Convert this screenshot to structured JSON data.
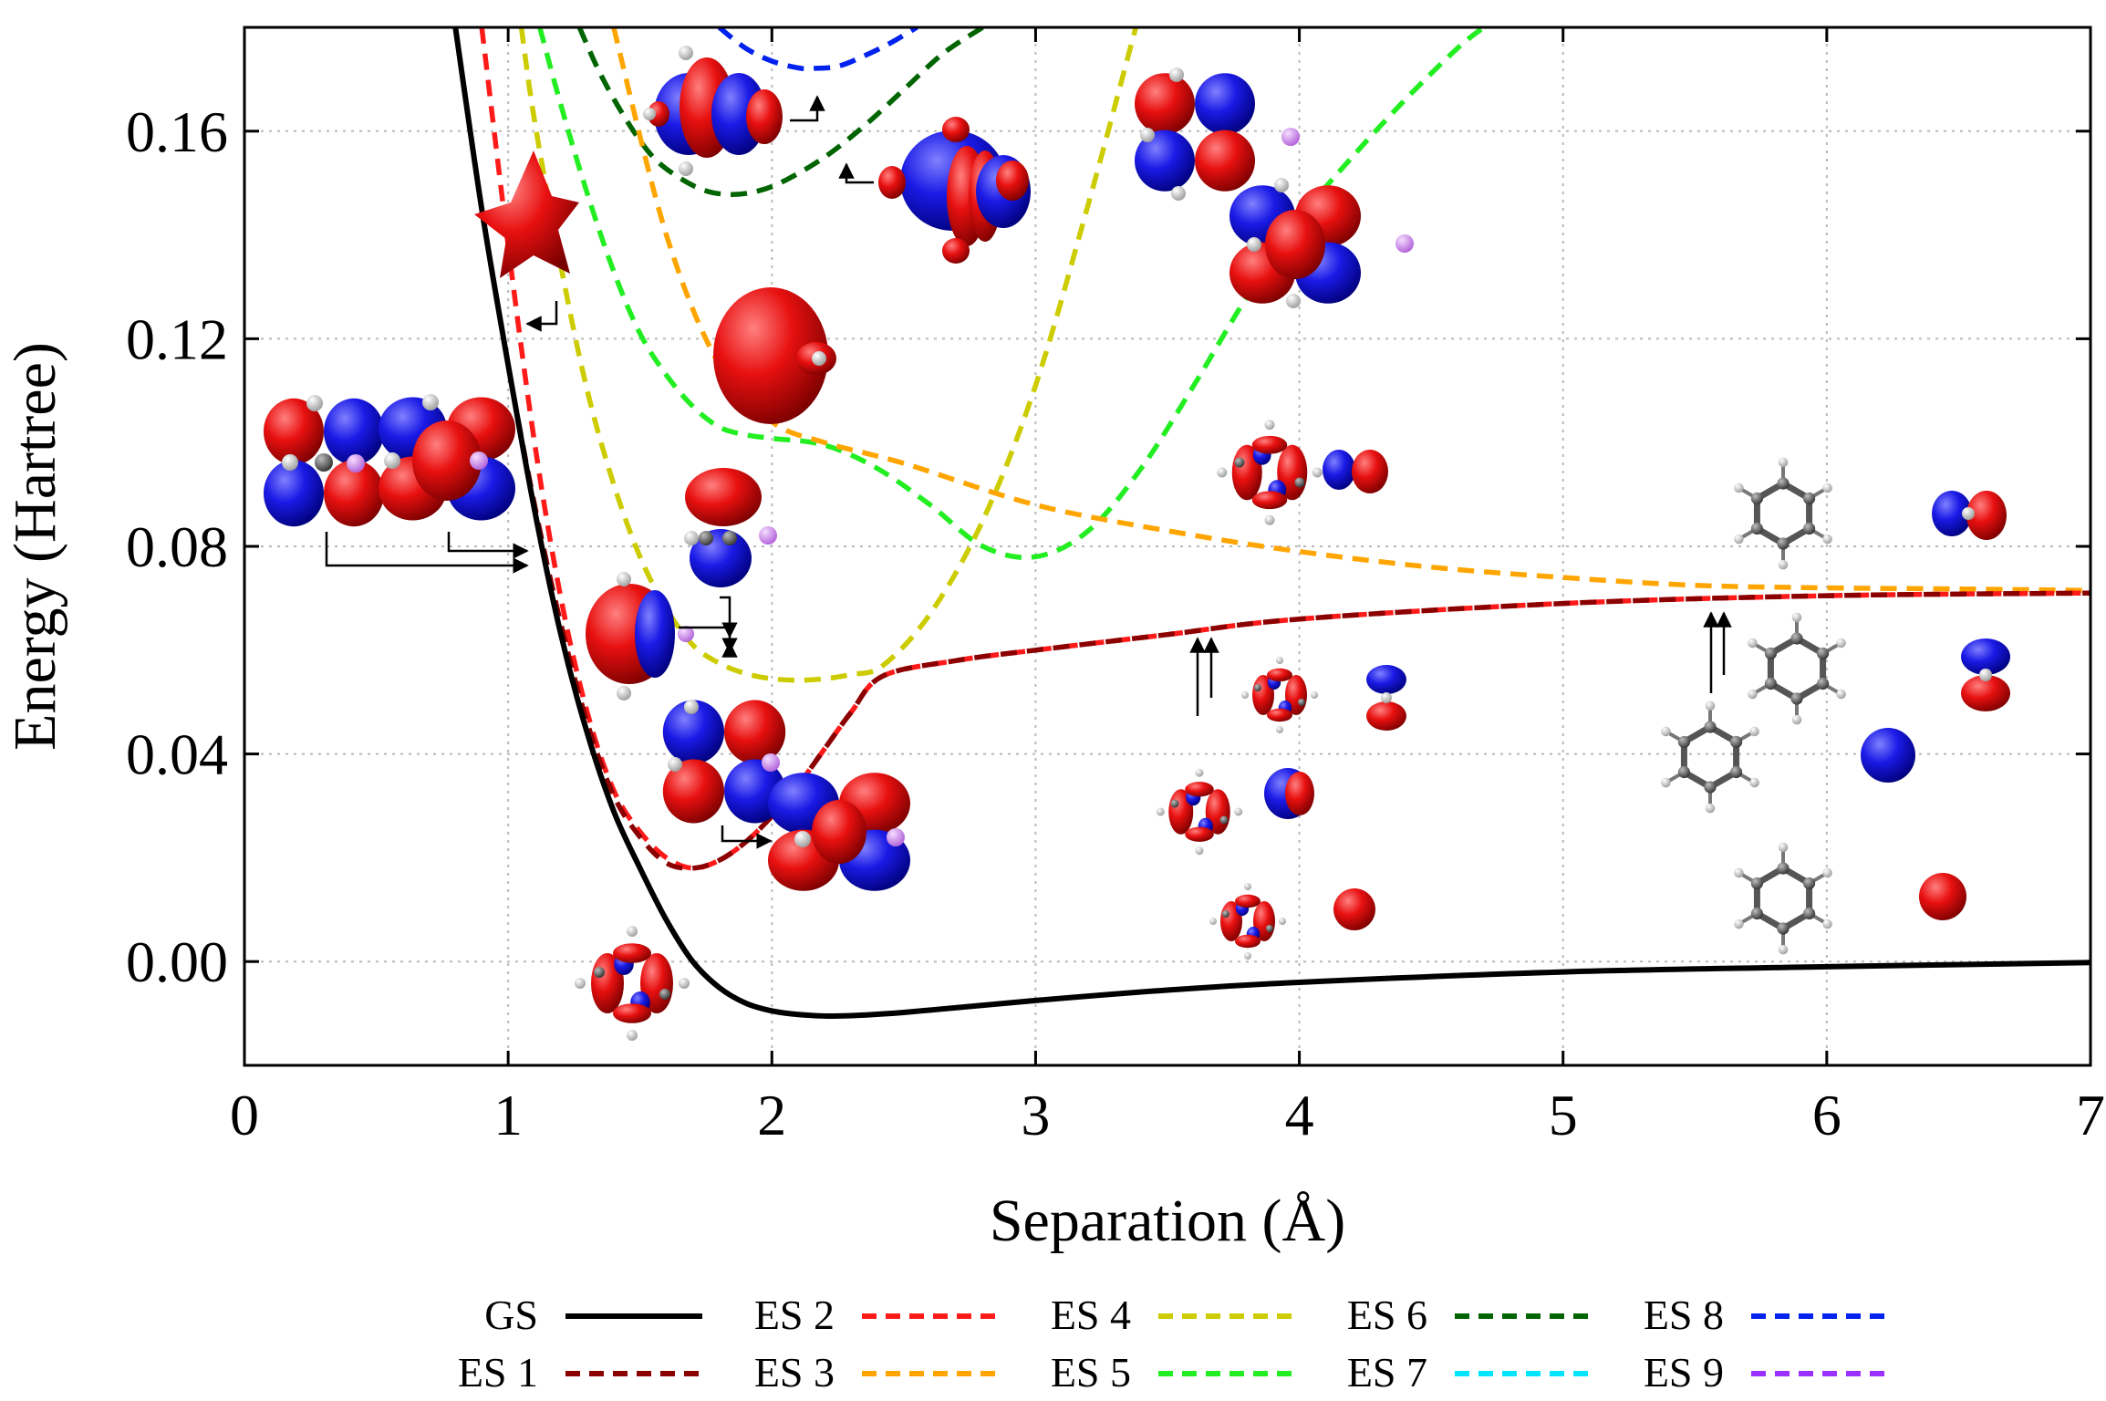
{
  "chart_data": {
    "type": "line",
    "xlabel": "Separation (Å)",
    "ylabel": "Energy (Hartree)",
    "xlim": [
      0,
      7
    ],
    "ylim": [
      -0.02,
      0.18
    ],
    "xticks": [
      0,
      1,
      2,
      3,
      4,
      5,
      6,
      7
    ],
    "xtick_labels": [
      "0",
      "1",
      "2",
      "3",
      "4",
      "5",
      "6",
      "7"
    ],
    "yticks": [
      0.0,
      0.04,
      0.08,
      0.12,
      0.16
    ],
    "ytick_labels": [
      "0.00",
      "0.04",
      "0.08",
      "0.12",
      "0.16"
    ],
    "grid": true,
    "legend_position": "bottom",
    "series": [
      {
        "name": "GS",
        "color": "#000000",
        "dash": "solid",
        "x": [
          0.8,
          0.9,
          1.0,
          1.1,
          1.2,
          1.3,
          1.4,
          1.5,
          1.6,
          1.7,
          1.8,
          1.9,
          2.0,
          2.1,
          2.25,
          2.5,
          3.0,
          3.5,
          4.0,
          5.0,
          6.0,
          7.0
        ],
        "y": [
          0.18,
          0.145,
          0.115,
          0.087,
          0.063,
          0.044,
          0.029,
          0.018,
          0.008,
          0.0,
          -0.005,
          -0.008,
          -0.0095,
          -0.0102,
          -0.0105,
          -0.0098,
          -0.0075,
          -0.0055,
          -0.004,
          -0.002,
          -0.001,
          -0.0002
        ]
      },
      {
        "name": "ES 1",
        "color": "#8b0000",
        "dash": "dashed",
        "x": [
          0.8,
          0.9,
          1.0,
          1.1,
          1.2,
          1.3,
          1.4,
          1.5,
          1.6,
          1.7,
          1.8,
          1.9,
          2.0,
          2.1,
          2.2,
          2.3,
          2.42,
          2.7,
          3.0,
          3.5,
          4.0,
          5.0,
          6.0,
          7.0
        ],
        "y": [
          0.18,
          0.145,
          0.115,
          0.088,
          0.065,
          0.046,
          0.032,
          0.024,
          0.019,
          0.018,
          0.0195,
          0.023,
          0.028,
          0.034,
          0.041,
          0.048,
          0.055,
          0.058,
          0.06,
          0.063,
          0.066,
          0.069,
          0.0705,
          0.071
        ]
      },
      {
        "name": "ES 2",
        "color": "#ff1a1a",
        "dash": "dashed",
        "x": [
          0.9,
          1.0,
          1.1,
          1.2,
          1.3,
          1.4,
          1.5,
          1.6,
          1.7,
          1.8,
          1.9,
          2.0,
          2.1,
          2.2,
          2.3,
          2.42,
          2.7,
          3.0,
          3.5,
          4.0,
          5.0,
          6.0,
          7.0
        ],
        "y": [
          0.18,
          0.138,
          0.1,
          0.07,
          0.048,
          0.033,
          0.025,
          0.02,
          0.018,
          0.0195,
          0.023,
          0.028,
          0.034,
          0.041,
          0.048,
          0.055,
          0.058,
          0.06,
          0.063,
          0.066,
          0.069,
          0.0705,
          0.071
        ]
      },
      {
        "name": "ES 3",
        "color": "#ffa500",
        "dash": "dashed",
        "x": [
          1.4,
          1.6,
          1.8,
          2.0,
          2.2,
          2.5,
          3.0,
          3.5,
          4.0,
          4.5,
          5.0,
          5.5,
          6.0,
          6.5,
          7.0
        ],
        "y": [
          0.18,
          0.14,
          0.115,
          0.104,
          0.1,
          0.096,
          0.088,
          0.083,
          0.079,
          0.076,
          0.074,
          0.0725,
          0.072,
          0.0718,
          0.0715
        ]
      },
      {
        "name": "ES 4",
        "color": "#cccc00",
        "dash": "dashed",
        "x": [
          1.05,
          1.1,
          1.2,
          1.3,
          1.4,
          1.5,
          1.6,
          1.7,
          1.8,
          1.9,
          2.0,
          2.1,
          2.2,
          2.3,
          2.42,
          2.6,
          2.8,
          3.0,
          3.2,
          3.38
        ],
        "y": [
          0.18,
          0.162,
          0.134,
          0.11,
          0.092,
          0.078,
          0.068,
          0.061,
          0.0575,
          0.0555,
          0.0545,
          0.0542,
          0.0545,
          0.0553,
          0.057,
          0.067,
          0.085,
          0.111,
          0.146,
          0.18
        ]
      },
      {
        "name": "ES 5",
        "color": "#22ee22",
        "dash": "dashed",
        "x": [
          1.12,
          1.2,
          1.3,
          1.4,
          1.5,
          1.6,
          1.7,
          1.8,
          1.9,
          2.0,
          2.2,
          2.4,
          2.6,
          2.8,
          3.0,
          3.2,
          3.4,
          3.6,
          3.8,
          4.0,
          4.2,
          4.4,
          4.6,
          4.7
        ],
        "y": [
          0.18,
          0.165,
          0.148,
          0.133,
          0.121,
          0.113,
          0.107,
          0.103,
          0.1015,
          0.1008,
          0.0995,
          0.095,
          0.088,
          0.08,
          0.078,
          0.083,
          0.095,
          0.111,
          0.128,
          0.143,
          0.155,
          0.166,
          0.176,
          0.18
        ]
      },
      {
        "name": "ES 6",
        "color": "#006400",
        "dash": "dashed",
        "x": [
          1.27,
          1.35,
          1.45,
          1.55,
          1.65,
          1.75,
          1.85,
          1.95,
          2.05,
          2.2,
          2.35,
          2.5,
          2.65,
          2.8
        ],
        "y": [
          0.18,
          0.171,
          0.162,
          0.155,
          0.151,
          0.1485,
          0.1478,
          0.1485,
          0.1505,
          0.155,
          0.161,
          0.168,
          0.175,
          0.18
        ]
      },
      {
        "name": "ES 7",
        "color": "#00e5ff",
        "dash": "dashed",
        "x": [],
        "y": []
      },
      {
        "name": "ES 8",
        "color": "#0022ee",
        "dash": "dashed",
        "x": [
          1.8,
          1.9,
          2.0,
          2.1,
          2.15,
          2.25,
          2.35,
          2.45,
          2.55
        ],
        "y": [
          0.18,
          0.176,
          0.1735,
          0.1722,
          0.1721,
          0.1725,
          0.1745,
          0.177,
          0.18
        ]
      },
      {
        "name": "ES 9",
        "color": "#9b30ff",
        "dash": "dashed",
        "x": [],
        "y": []
      }
    ]
  },
  "colors": {
    "orbital_positive": "#e81010",
    "orbital_negative": "#1a1ae6",
    "carbon_atom": "#5a5a5a",
    "hydrogen_atom": "#eeeeee",
    "lithium_atom": "#d58ef0"
  }
}
